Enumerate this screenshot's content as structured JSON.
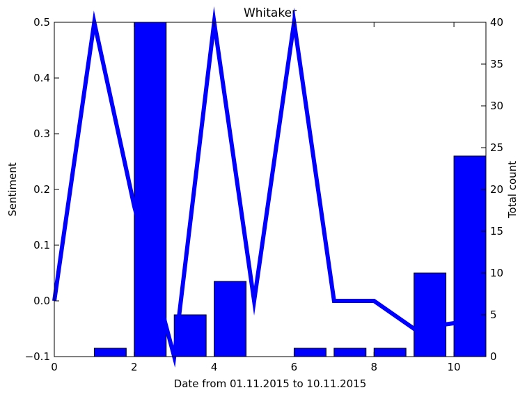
{
  "chart_data": {
    "type": "bar+line",
    "title": "Whitaker",
    "xlabel": "Date from 01.11.2015 to 10.11.2015",
    "ylabel_left": "Sentiment",
    "ylabel_right": "Total count",
    "xlim": [
      0,
      10.8
    ],
    "ylim_left": [
      -0.1,
      0.5
    ],
    "ylim_right": [
      0,
      40
    ],
    "x_ticks": [
      0,
      2,
      4,
      6,
      8,
      10
    ],
    "y_ticks_left": [
      "−0.1",
      "0.0",
      "0.1",
      "0.2",
      "0.3",
      "0.4",
      "0.5"
    ],
    "y_ticks_right": [
      "0",
      "5",
      "10",
      "15",
      "20",
      "25",
      "30",
      "35",
      "40"
    ],
    "grid": false,
    "bars": {
      "axis": "right",
      "color": "#0000ff",
      "width": 0.8,
      "x": [
        0,
        1,
        2,
        3,
        4,
        5,
        6,
        7,
        8,
        9,
        10
      ],
      "values": [
        0,
        1,
        40,
        5,
        9,
        0,
        1,
        1,
        1,
        10,
        24
      ]
    },
    "line": {
      "axis": "left",
      "color": "#0000ff",
      "x": [
        0,
        1,
        2,
        3,
        4,
        5,
        6,
        7,
        8,
        9,
        10,
        10.8
      ],
      "values": [
        0.0,
        0.5,
        0.17,
        -0.1,
        0.5,
        0.0,
        0.5,
        0.0,
        0.0,
        -0.05,
        -0.04,
        -0.04
      ]
    }
  }
}
